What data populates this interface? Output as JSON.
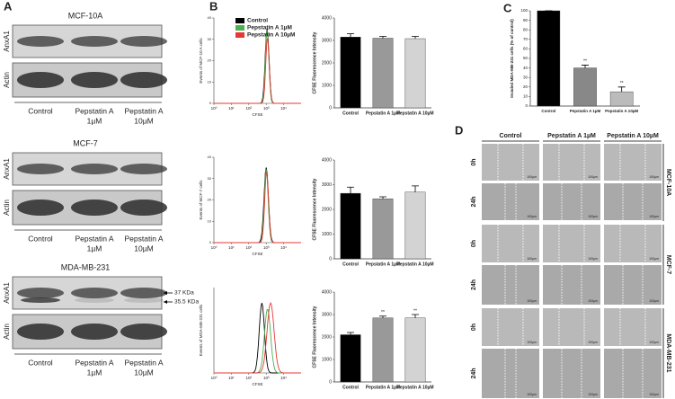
{
  "panel_labels": [
    "A",
    "B",
    "C",
    "D"
  ],
  "blots": {
    "row_labels": [
      "AnxA1",
      "Actin"
    ],
    "groups": [
      {
        "title": "MCF-10A",
        "lanes": [
          [
            "Control"
          ],
          [
            "Pepstatin A",
            "1µM"
          ],
          [
            "Pepstatin A",
            "10µM"
          ]
        ]
      },
      {
        "title": "MCF-7",
        "lanes": [
          [
            "Control"
          ],
          [
            "Pepstatin A",
            "1µM"
          ],
          [
            "Pepstatin A",
            "10µM"
          ]
        ]
      },
      {
        "title": "MDA-MB-231",
        "lanes": [
          [
            "Control"
          ],
          [
            "Pepstatin A",
            "1µM"
          ],
          [
            "Pepstatin A",
            "10µM"
          ]
        ]
      }
    ],
    "markers": [
      "37 KDa",
      "35.5 KDa"
    ]
  },
  "histograms": {
    "x_label": "CFSE",
    "legend": [
      {
        "name": "Control",
        "color": "#000000"
      },
      {
        "name": "Pepstatin A 1µM",
        "color": "#4caf50"
      },
      {
        "name": "Pepstatin A 10µM",
        "color": "#e53935"
      }
    ],
    "xlim": [
      1,
      100000
    ],
    "xticks": [
      {
        "value": 1,
        "label": "10⁰"
      },
      {
        "value": 10,
        "label": "10¹"
      },
      {
        "value": 100,
        "label": "10²"
      },
      {
        "value": 1000,
        "label": "10³"
      },
      {
        "value": 10000,
        "label": "10⁴"
      }
    ],
    "plots": [
      {
        "y_label": "Events of MCF-10 A cells",
        "ylim": [
          0,
          40
        ],
        "yticks": [
          0,
          10,
          20,
          30,
          40
        ]
      },
      {
        "y_label": "Events of MCF-7 cells",
        "ylim": [
          0,
          40
        ],
        "yticks": [
          0,
          10,
          20,
          30,
          40
        ]
      },
      {
        "y_label": "Events of MDA-MB-231 cells"
      }
    ]
  },
  "chart_data": [
    {
      "type": "bar",
      "y_label": "CFSE Fluorescence Intensity",
      "categories": [
        "Control",
        "Pepstatin A 1µM",
        "Pepstatin A 10µM"
      ],
      "values": [
        3150,
        3100,
        3080
      ],
      "errors": [
        150,
        80,
        100
      ],
      "colors": [
        "#000000",
        "#999999",
        "#d3d3d3"
      ],
      "ylim": [
        0,
        4000
      ],
      "yticks": [
        0,
        1000,
        2000,
        3000,
        4000
      ]
    },
    {
      "type": "bar",
      "y_label": "CFSE Fluorescence Intensity",
      "categories": [
        "Control",
        "Pepstatin A 1µM",
        "Pepstatin A 10µM"
      ],
      "values": [
        2650,
        2430,
        2700
      ],
      "errors": [
        250,
        80,
        250
      ],
      "colors": [
        "#000000",
        "#999999",
        "#d3d3d3"
      ],
      "ylim": [
        0,
        4000
      ],
      "yticks": [
        0,
        1000,
        2000,
        3000,
        4000
      ]
    },
    {
      "type": "bar",
      "y_label": "CFSE Fluorescence Intensity",
      "categories": [
        "Control",
        "Pepstatin A 1µM",
        "Pepstatin A 10µM"
      ],
      "values": [
        2100,
        2850,
        2850
      ],
      "errors": [
        100,
        80,
        150
      ],
      "annotations": [
        null,
        "**",
        "**"
      ],
      "colors": [
        "#000000",
        "#999999",
        "#d3d3d3"
      ],
      "ylim": [
        0,
        4000
      ],
      "yticks": [
        0,
        1000,
        2000,
        3000,
        4000
      ]
    },
    {
      "type": "bar",
      "y_label": "Invaded MDA-MB-231 cells (% of control)",
      "categories": [
        "Control",
        "Pepstatin A 1µM",
        "Pepstatin A 10µM"
      ],
      "values": [
        100,
        40,
        15
      ],
      "errors": [
        0,
        3,
        5
      ],
      "annotations": [
        null,
        "**",
        "**"
      ],
      "colors": [
        "#000000",
        "#888888",
        "#bbbbbb"
      ],
      "ylim": [
        0,
        100
      ],
      "yticks": [
        0,
        10,
        20,
        30,
        40,
        50,
        60,
        70,
        80,
        90,
        100
      ]
    }
  ],
  "panel_d": {
    "columns": [
      "Control",
      "Pepstatin A 1µM",
      "Pepstatin A 10µM"
    ],
    "times": [
      "0h",
      "24h"
    ],
    "cell_lines": [
      "MCF-10A",
      "MCF-7",
      "MDA-MB-231"
    ],
    "scale": "100µm"
  }
}
